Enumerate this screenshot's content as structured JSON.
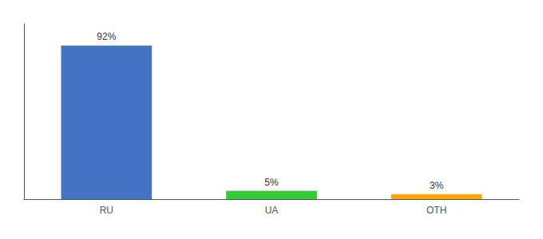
{
  "chart_data": {
    "type": "bar",
    "categories": [
      "RU",
      "UA",
      "OTH"
    ],
    "values": [
      92,
      5,
      3
    ],
    "value_labels": [
      "92%",
      "5%",
      "3%"
    ],
    "colors": [
      "#4472C4",
      "#33CC33",
      "#FFA500"
    ],
    "ylim": [
      0,
      105
    ],
    "grid": false,
    "tick_labels": "x",
    "data_labels": true
  }
}
